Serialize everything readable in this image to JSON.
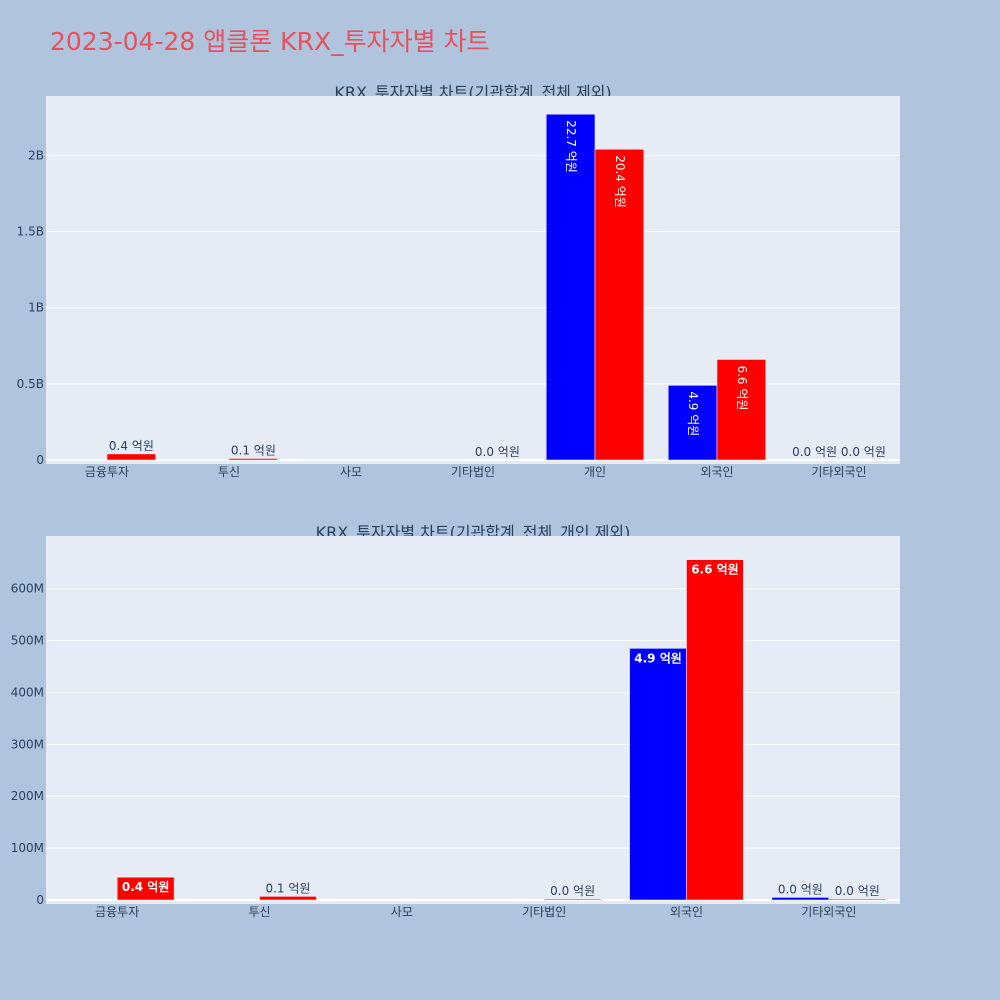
{
  "title": "2023-04-28 앱클론 KRX_투자자별 차트",
  "colors": {
    "background": "#b0c4de",
    "plot_bg": "#e5ecf6",
    "title": "#e8505b",
    "series_blue": "#0000ff",
    "series_red": "#ff0000",
    "axis_text": "#2a3f5f"
  },
  "chart_data": [
    {
      "type": "bar",
      "title": "KRX_투자자별 차트(기관합계_전체 제외)",
      "categories": [
        "금융투자",
        "투신",
        "사모",
        "기타법인",
        "개인",
        "외국인",
        "기타외국인"
      ],
      "ylim": [
        0,
        2350000000
      ],
      "yticks": [
        {
          "value": 0,
          "label": "0"
        },
        {
          "value": 500000000,
          "label": "0.5B"
        },
        {
          "value": 1000000000,
          "label": "1B"
        },
        {
          "value": 1500000000,
          "label": "1.5B"
        },
        {
          "value": 2000000000,
          "label": "2B"
        }
      ],
      "grid": true,
      "series": [
        {
          "color": "#0000ff",
          "values": [
            0,
            0,
            0,
            0,
            2270000000,
            490000000,
            0
          ],
          "labels": [
            "",
            "",
            "",
            "",
            "22.7 억원",
            "4.9 억원",
            "0.0 억원"
          ]
        },
        {
          "color": "#ff0000",
          "values": [
            40000000,
            10000000,
            0,
            0,
            2040000000,
            660000000,
            0
          ],
          "labels": [
            "0.4 억원",
            "0.1 억원",
            "",
            "0.0 억원",
            "20.4 억원",
            "6.6 억원",
            "0.0 억원"
          ]
        }
      ]
    },
    {
      "type": "bar",
      "title": "KRX_투자자별 차트(기관합계_전체_개인 제외)",
      "categories": [
        "금융투자",
        "투신",
        "사모",
        "기타법인",
        "외국인",
        "기타외국인"
      ],
      "ylim": [
        0,
        690000000
      ],
      "yticks": [
        {
          "value": 0,
          "label": "0"
        },
        {
          "value": 100000000,
          "label": "100M"
        },
        {
          "value": 200000000,
          "label": "200M"
        },
        {
          "value": 300000000,
          "label": "300M"
        },
        {
          "value": 400000000,
          "label": "400M"
        },
        {
          "value": 500000000,
          "label": "500M"
        },
        {
          "value": 600000000,
          "label": "600M"
        }
      ],
      "grid": true,
      "series": [
        {
          "color": "#0000ff",
          "values": [
            0,
            0,
            0,
            0,
            485000000,
            5000000
          ],
          "labels": [
            "",
            "",
            "",
            "",
            "4.9 억원",
            "0.0 억원"
          ]
        },
        {
          "color": "#ff0000",
          "values": [
            44000000,
            7000000,
            0,
            1000000,
            656000000,
            1000000
          ],
          "labels": [
            "0.4 억원",
            "0.1 억원",
            "",
            "0.0 억원",
            "6.6 억원",
            "0.0 억원"
          ]
        }
      ]
    }
  ]
}
